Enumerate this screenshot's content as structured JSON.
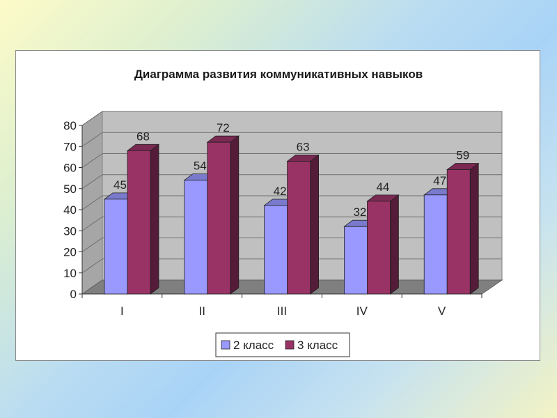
{
  "chart_data": {
    "type": "bar",
    "title": "Диаграмма развития коммуникативных навыков",
    "categories": [
      "I",
      "II",
      "III",
      "IV",
      "V"
    ],
    "series": [
      {
        "name": "2 класс",
        "values": [
          45,
          54,
          42,
          32,
          47
        ],
        "color": "#9999ff"
      },
      {
        "name": "3 класс",
        "values": [
          68,
          72,
          63,
          44,
          59
        ],
        "color": "#993366"
      }
    ],
    "y_ticks": [
      "0",
      "10",
      "20",
      "30",
      "40",
      "50",
      "60",
      "70",
      "80"
    ],
    "ylim": [
      0,
      80
    ],
    "grid": true,
    "legend_position": "bottom",
    "style": "3d-clustered-column"
  }
}
